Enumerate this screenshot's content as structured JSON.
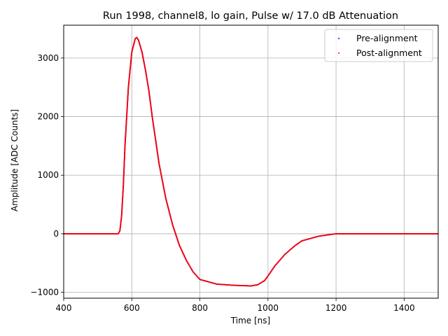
{
  "chart_data": {
    "type": "scatter",
    "title": "Run 1998, channel8, lo gain, Pulse w/ 17.0 dB Attenuation",
    "xlabel": "Time [ns]",
    "ylabel": "Amplitude [ADC Counts]",
    "xlim": [
      400,
      1500
    ],
    "ylim": [
      -1100,
      3560
    ],
    "xticks": [
      400,
      600,
      800,
      1000,
      1200,
      1400
    ],
    "yticks": [
      -1000,
      0,
      1000,
      2000,
      3000
    ],
    "xtick_labels": [
      "400",
      "600",
      "800",
      "1000",
      "1200",
      "1400"
    ],
    "ytick_labels": [
      "−1000",
      "0",
      "1000",
      "2000",
      "3000"
    ],
    "grid": true,
    "legend_position": "upper-right",
    "series": [
      {
        "name": "Pre-alignment",
        "color": "#0000ff",
        "x": [
          400,
          500,
          555,
          560,
          565,
          570,
          575,
          580,
          590,
          600,
          610,
          615,
          620,
          630,
          640,
          650,
          660,
          670,
          680,
          700,
          720,
          740,
          760,
          780,
          800,
          850,
          900,
          950,
          970,
          990,
          1000,
          1020,
          1050,
          1080,
          1100,
          1150,
          1200,
          1250,
          1300,
          1400,
          1500
        ],
        "values": [
          0,
          0,
          0,
          0,
          50,
          300,
          800,
          1500,
          2500,
          3100,
          3330,
          3350,
          3300,
          3100,
          2800,
          2450,
          2000,
          1600,
          1200,
          600,
          150,
          -200,
          -450,
          -650,
          -780,
          -860,
          -880,
          -890,
          -870,
          -800,
          -720,
          -550,
          -350,
          -200,
          -120,
          -40,
          0,
          0,
          0,
          0,
          0
        ]
      },
      {
        "name": "Post-alignment",
        "color": "#ff0000",
        "x": [
          400,
          500,
          555,
          560,
          565,
          570,
          575,
          580,
          590,
          600,
          610,
          615,
          620,
          630,
          640,
          650,
          660,
          670,
          680,
          700,
          720,
          740,
          760,
          780,
          800,
          850,
          900,
          950,
          970,
          990,
          1000,
          1020,
          1050,
          1080,
          1100,
          1150,
          1200,
          1250,
          1300,
          1400,
          1500
        ],
        "values": [
          0,
          0,
          0,
          0,
          50,
          300,
          800,
          1500,
          2500,
          3100,
          3330,
          3350,
          3300,
          3100,
          2800,
          2450,
          2000,
          1600,
          1200,
          600,
          150,
          -200,
          -450,
          -650,
          -780,
          -860,
          -880,
          -890,
          -870,
          -800,
          -720,
          -550,
          -350,
          -200,
          -120,
          -40,
          0,
          0,
          0,
          0,
          0
        ]
      }
    ]
  }
}
